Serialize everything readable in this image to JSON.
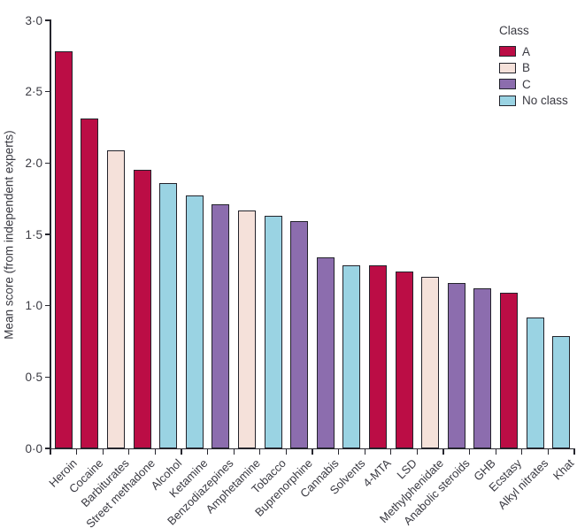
{
  "chart_data": {
    "type": "bar",
    "ylabel": "Mean score (from independent experts)",
    "ylim": [
      0,
      3.0
    ],
    "yticks": [
      0.0,
      0.5,
      1.0,
      1.5,
      2.0,
      2.5,
      3.0
    ],
    "ytick_labels": [
      "0·0",
      "0·5",
      "1·0",
      "1·5",
      "2·0",
      "2·5",
      "3·0"
    ],
    "grid": false,
    "categories": [
      "Heroin",
      "Cocaine",
      "Barbiturates",
      "Street methadone",
      "Alcohol",
      "Ketamine",
      "Benzodiazepines",
      "Amphetamine",
      "Tobacco",
      "Buprenorphine",
      "Cannabis",
      "Solvents",
      "4-MTA",
      "LSD",
      "Methylphenidate",
      "Anabolic steroids",
      "GHB",
      "Ecstasy",
      "Alkyl nitrates",
      "Khat"
    ],
    "values": [
      2.78,
      2.31,
      2.09,
      1.95,
      1.86,
      1.77,
      1.71,
      1.67,
      1.63,
      1.59,
      1.34,
      1.28,
      1.28,
      1.24,
      1.2,
      1.16,
      1.12,
      1.09,
      0.92,
      0.79
    ],
    "classes": [
      "A",
      "A",
      "B",
      "A",
      "No class",
      "No class",
      "C",
      "B",
      "No class",
      "C",
      "C",
      "No class",
      "A",
      "A",
      "B",
      "C",
      "C",
      "A",
      "No class",
      "No class"
    ],
    "colors": {
      "A": "#BB0D45",
      "B": "#F5E1DA",
      "C": "#8C6DAE",
      "No class": "#9AD3E3",
      "axis": "#26262e",
      "text": "#3a3a42"
    },
    "legend": {
      "title": "Class",
      "position": "top-right",
      "entries": [
        {
          "key": "A",
          "label": "A"
        },
        {
          "key": "B",
          "label": "B"
        },
        {
          "key": "C",
          "label": "C"
        },
        {
          "key": "No class",
          "label": "No class"
        }
      ]
    }
  }
}
